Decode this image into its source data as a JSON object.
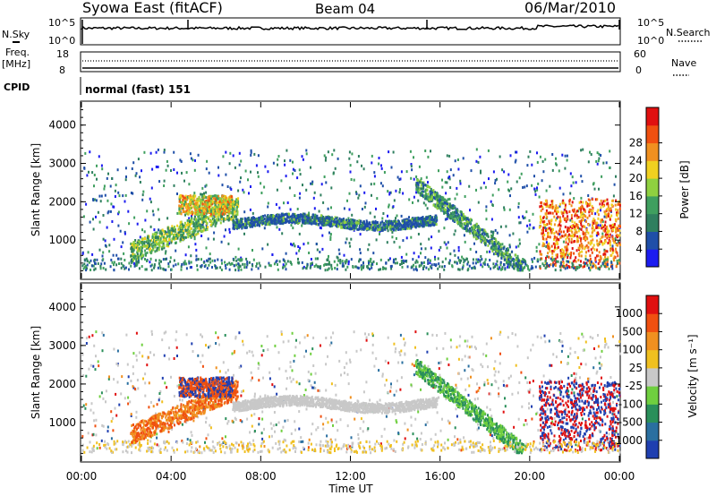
{
  "header": {
    "station": "Syowa East (fitACF)",
    "beam": "Beam 04",
    "date": "06/Mar/2010"
  },
  "small_panels": {
    "nsky": {
      "label": "N.Sky",
      "top_tick": "10^5",
      "bottom_tick": "10^0"
    },
    "nsearch": {
      "label": "N.Search",
      "top_tick": "10^5",
      "bottom_tick": "10^0"
    },
    "freq": {
      "label_line1": "Freq.",
      "label_line2": "[MHz]",
      "top_tick": "18",
      "bottom_tick": "8"
    },
    "nave": {
      "label": "Nave",
      "top_tick": "60",
      "bottom_tick": "0"
    },
    "cpid": {
      "label": "CPID",
      "value": "normal (fast) 151"
    }
  },
  "chart_data": [
    {
      "type": "heatmap",
      "quantity": "Power",
      "ylabel": "Slant Range [km]",
      "xlabel": "",
      "yticks": [
        "1000",
        "2000",
        "3000",
        "4000"
      ],
      "colorbar": {
        "label": "Power [dB]",
        "ticks": [
          "4",
          "8",
          "12",
          "16",
          "20",
          "24",
          "28"
        ],
        "colors": [
          "#1c1cf0",
          "#1f4fa8",
          "#2f7f5f",
          "#3f9f5f",
          "#8fd040",
          "#f0d020",
          "#f09020",
          "#f05010",
          "#e01010"
        ]
      }
    },
    {
      "type": "heatmap",
      "quantity": "Velocity",
      "ylabel": "Slant Range [km]",
      "xlabel": "Time UT",
      "xticks": [
        "00:00",
        "04:00",
        "08:00",
        "12:00",
        "16:00",
        "20:00",
        "00:00"
      ],
      "yticks": [
        "1000",
        "2000",
        "3000",
        "4000"
      ],
      "colorbar": {
        "label": "Velocity [m s⁻¹]",
        "ticks": [
          "1000",
          "500",
          "100",
          "25",
          "-25",
          "-100",
          "-500",
          "-1000"
        ],
        "colors": [
          "#1f3fb0",
          "#2a6fa0",
          "#2a8f5a",
          "#6fcf3f",
          "#c8c8c8",
          "#f0c020",
          "#f09020",
          "#f05010",
          "#e01010"
        ]
      }
    }
  ]
}
